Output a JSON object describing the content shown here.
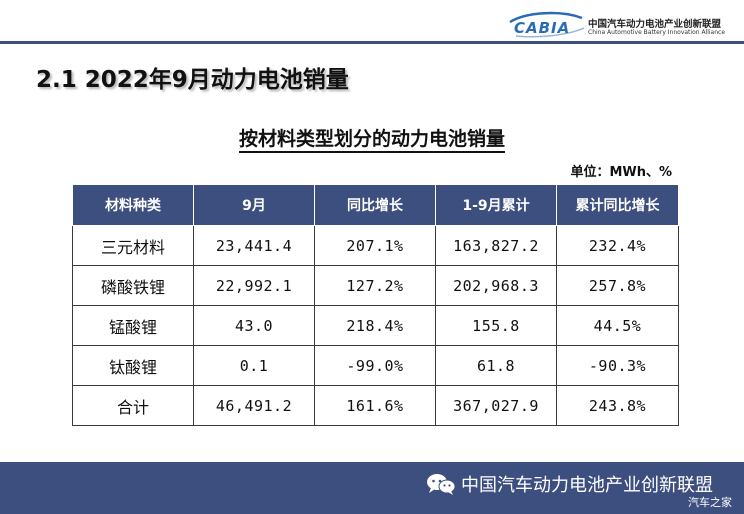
{
  "header": {
    "logo_wordmark": "CABIA",
    "org_name_cn": "中国汽车动力电池产业创新联盟",
    "org_name_en": "China Automotive Battery Innovation Alliance"
  },
  "section_title": "2.1  2022年9月动力电池销量",
  "table_title": "按材料类型划分的动力电池销量",
  "unit_label": "单位：MWh、%",
  "table": {
    "columns": [
      "材料种类",
      "9月",
      "同比增长",
      "1-9月累计",
      "累计同比增长"
    ],
    "rows": [
      [
        "三元材料",
        "23,441.4",
        "207.1%",
        "163,827.2",
        "232.4%"
      ],
      [
        "磷酸铁锂",
        "22,992.1",
        "127.2%",
        "202,968.3",
        "257.8%"
      ],
      [
        "锰酸锂",
        "43.0",
        "218.4%",
        "155.8",
        "44.5%"
      ],
      [
        "钛酸锂",
        "0.1",
        "-99.0%",
        "61.8",
        "-90.3%"
      ],
      [
        "合计",
        "46,491.2",
        "161.6%",
        "367,027.9",
        "243.8%"
      ]
    ]
  },
  "footer": {
    "icon": "wechat-icon",
    "text": "中国汽车动力电池产业创新联盟",
    "watermark": "汽车之家"
  },
  "colors": {
    "accent": "#3d4f7f",
    "logo_blue": "#2a6cb4"
  }
}
